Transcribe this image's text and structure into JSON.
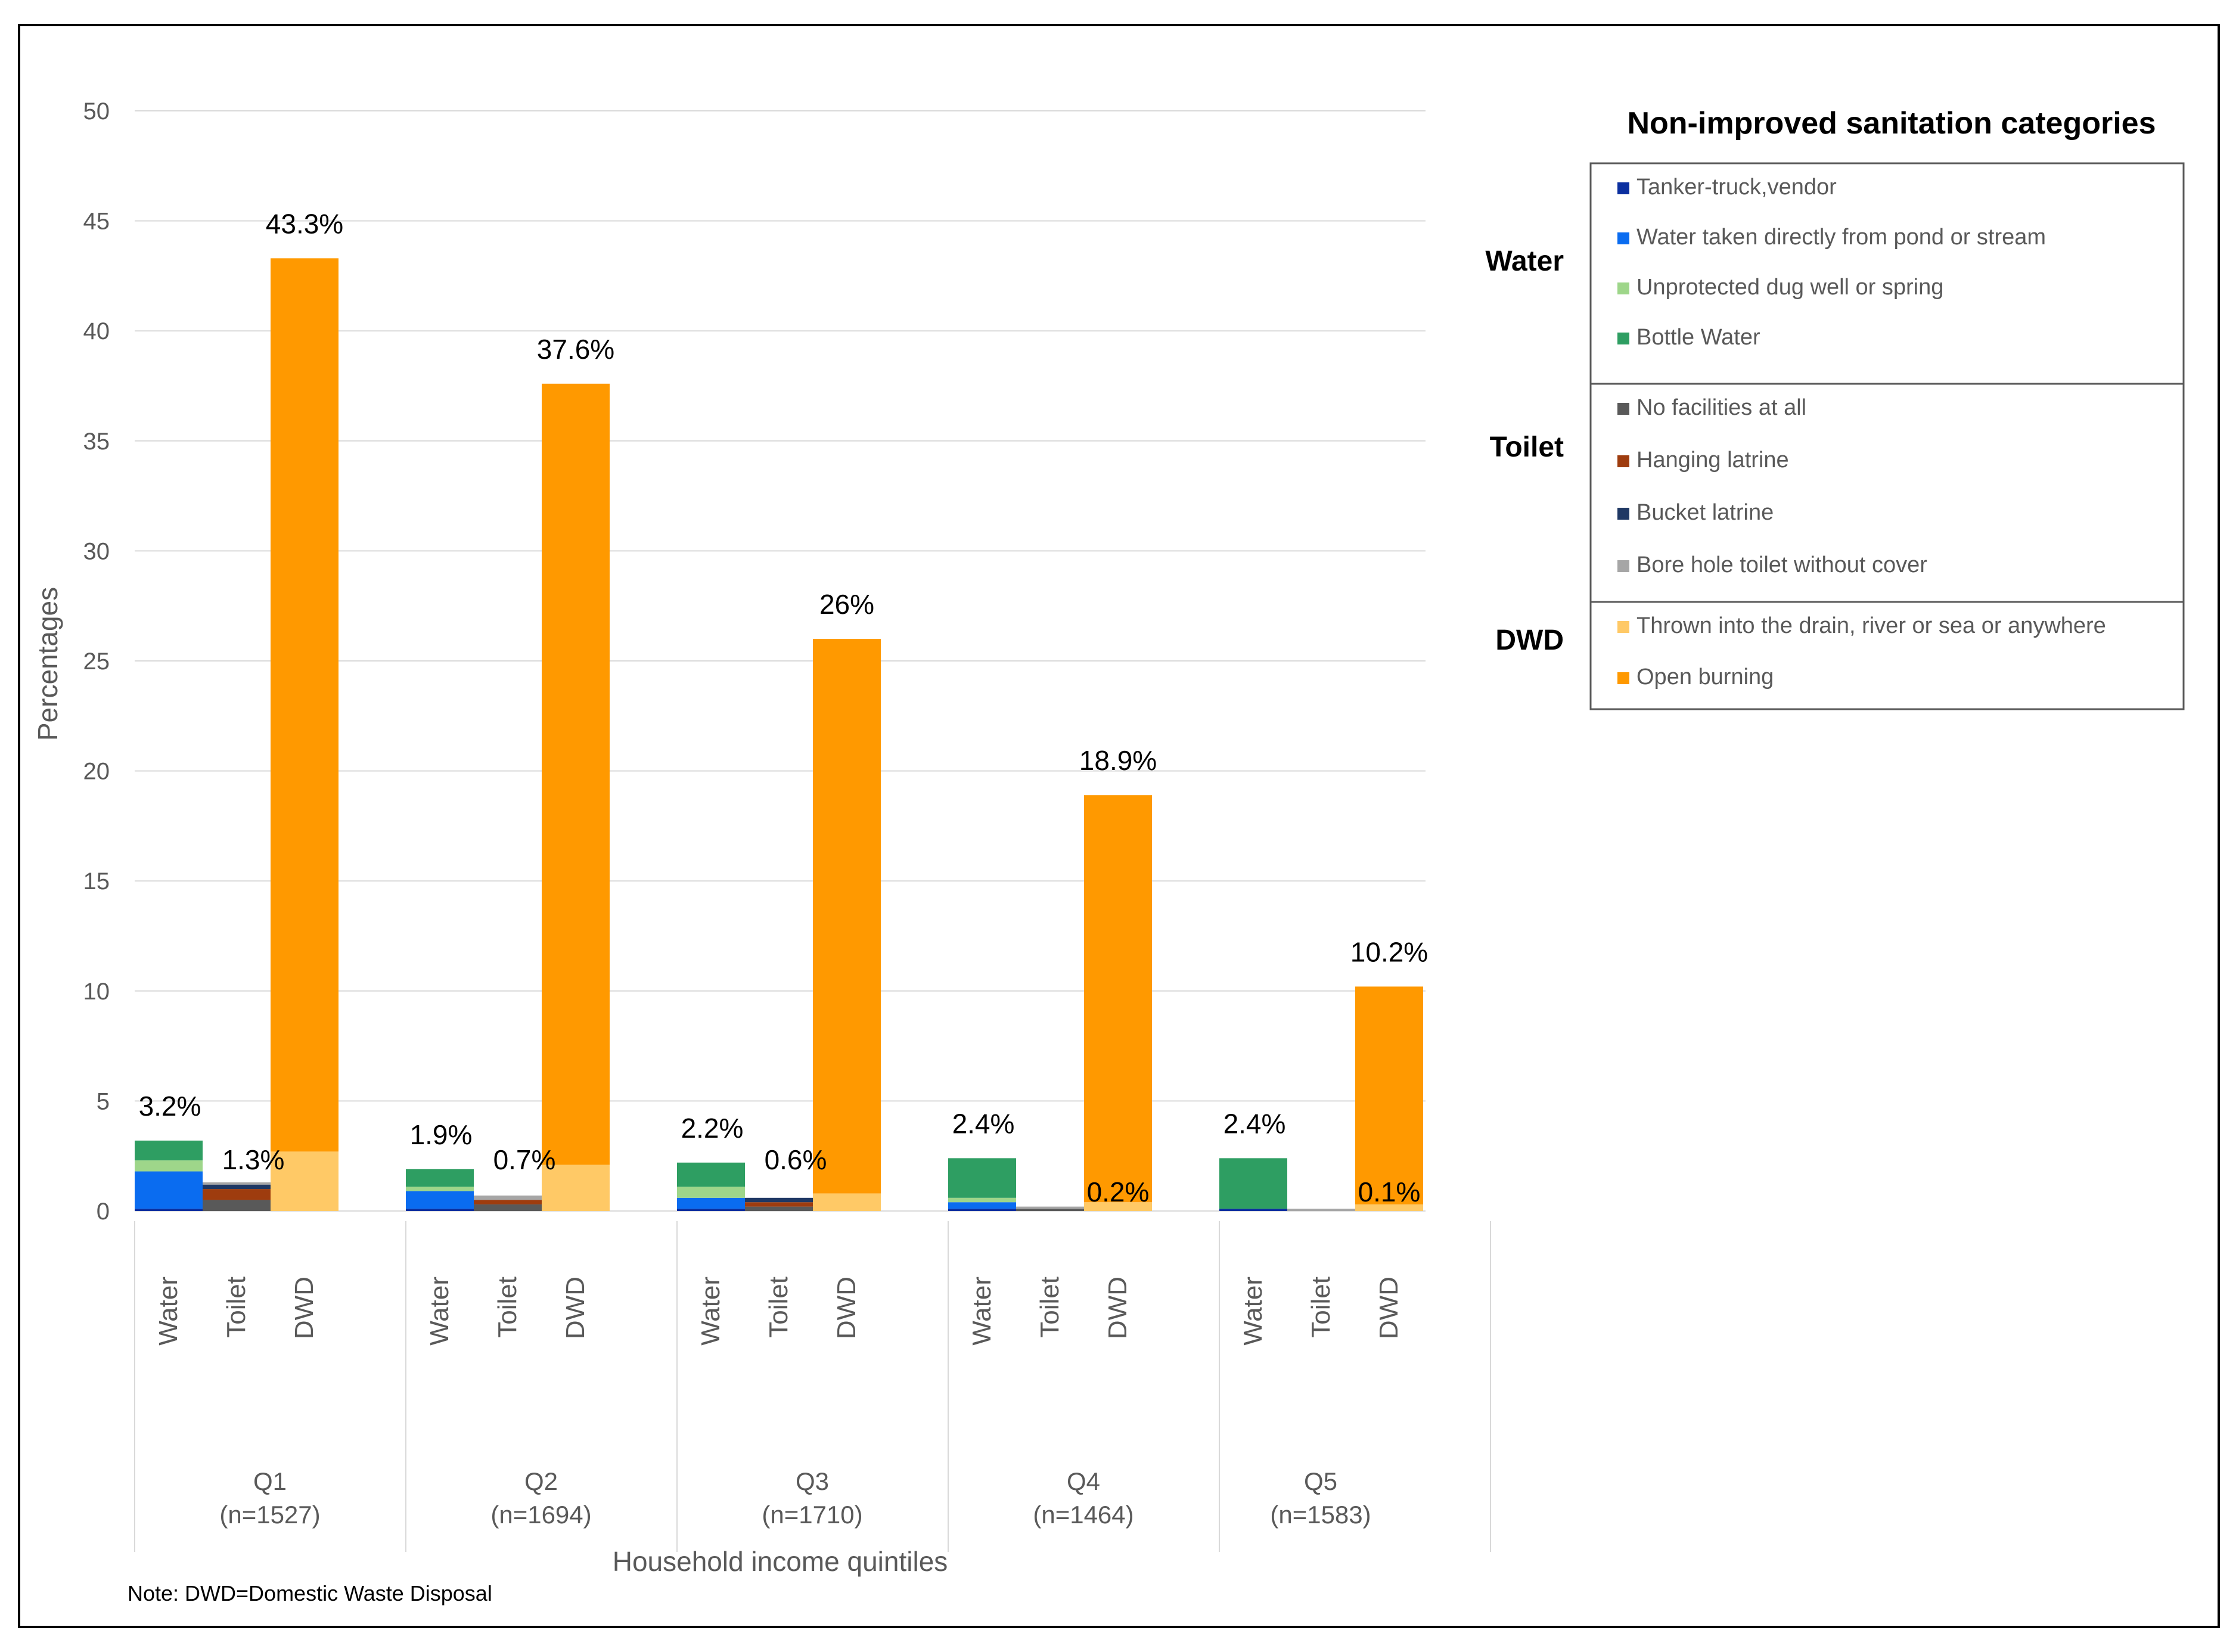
{
  "chart_data": {
    "type": "bar",
    "stacked": true,
    "ylabel": "Percentages",
    "xlabel": "Household income quintiles",
    "ylim": [
      0,
      50
    ],
    "yticks": [
      0,
      5,
      10,
      15,
      20,
      25,
      30,
      35,
      40,
      45,
      50
    ],
    "grid": true,
    "note": "Note: DWD=Domestic Waste Disposal",
    "subcategories": [
      "Water",
      "Toilet",
      "DWD"
    ],
    "groups": [
      {
        "label": "Q1",
        "n": "(n=1527)"
      },
      {
        "label": "Q2",
        "n": "(n=1694)"
      },
      {
        "label": "Q3",
        "n": "(n=1710)"
      },
      {
        "label": "Q4",
        "n": "(n=1464)"
      },
      {
        "label": "Q5",
        "n": "(n=1583)"
      }
    ],
    "series": [
      {
        "name": "Tanker-truck,vendor",
        "group": "Water",
        "color": "#0b2f9f",
        "values": [
          0.1,
          0.1,
          0.1,
          0.1,
          0.1
        ]
      },
      {
        "name": "Water taken directly from pond or stream",
        "group": "Water",
        "color": "#0a6cf0",
        "values": [
          1.7,
          0.8,
          0.5,
          0.3,
          0.0
        ]
      },
      {
        "name": "Unprotected dug well or spring",
        "group": "Water",
        "color": "#9ed68a",
        "values": [
          0.5,
          0.2,
          0.5,
          0.2,
          0.0
        ]
      },
      {
        "name": "Bottle Water",
        "group": "Water",
        "color": "#2e9e62",
        "values": [
          0.9,
          0.8,
          1.1,
          1.8,
          2.3
        ]
      },
      {
        "name": "No facilities at all",
        "group": "Toilet",
        "color": "#595959",
        "values": [
          0.5,
          0.3,
          0.2,
          0.1,
          0.0
        ]
      },
      {
        "name": "Hanging latrine",
        "group": "Toilet",
        "color": "#9e3c0e",
        "values": [
          0.5,
          0.2,
          0.2,
          0.0,
          0.0
        ]
      },
      {
        "name": "Bucket latrine",
        "group": "Toilet",
        "color": "#1f3864",
        "values": [
          0.2,
          0.0,
          0.2,
          0.0,
          0.0
        ]
      },
      {
        "name": "Bore hole toilet without cover",
        "group": "Toilet",
        "color": "#a6a6a6",
        "values": [
          0.1,
          0.2,
          0.0,
          0.1,
          0.1
        ]
      },
      {
        "name": "Thrown into the drain, river or sea or anywhere",
        "group": "DWD",
        "color": "#ffc966",
        "values": [
          2.7,
          2.1,
          0.8,
          0.4,
          0.3
        ]
      },
      {
        "name": "Open burning",
        "group": "DWD",
        "color": "#ff9900",
        "values": [
          40.6,
          35.5,
          25.2,
          18.5,
          9.9
        ]
      }
    ],
    "totals": {
      "Water": [
        "3.2%",
        "1.9%",
        "2.2%",
        "2.4%",
        "2.4%"
      ],
      "Toilet": [
        "1.3%",
        "0.7%",
        "0.6%",
        "0.2%",
        "0.1%"
      ],
      "DWD": [
        "43.3%",
        "37.6%",
        "26%",
        "18.9%",
        "10.2%"
      ]
    },
    "total_values": {
      "Water": [
        3.2,
        1.9,
        2.2,
        2.4,
        2.4
      ],
      "Toilet": [
        1.3,
        0.7,
        0.6,
        0.2,
        0.1
      ],
      "DWD": [
        43.3,
        37.6,
        26.0,
        18.9,
        10.2
      ]
    },
    "legend": {
      "title": "Non-improved sanitation categories",
      "position": "right",
      "groups": [
        {
          "label": "Water",
          "items": [
            "Tanker-truck,vendor",
            "Water taken directly from pond or stream",
            "Unprotected dug well or spring",
            "Bottle Water"
          ]
        },
        {
          "label": "Toilet",
          "items": [
            "No facilities at all",
            "Hanging latrine",
            "Bucket latrine",
            "Bore hole toilet without cover"
          ]
        },
        {
          "label": "DWD",
          "items": [
            "Thrown into the drain, river or sea or anywhere",
            "Open burning"
          ]
        }
      ]
    }
  }
}
